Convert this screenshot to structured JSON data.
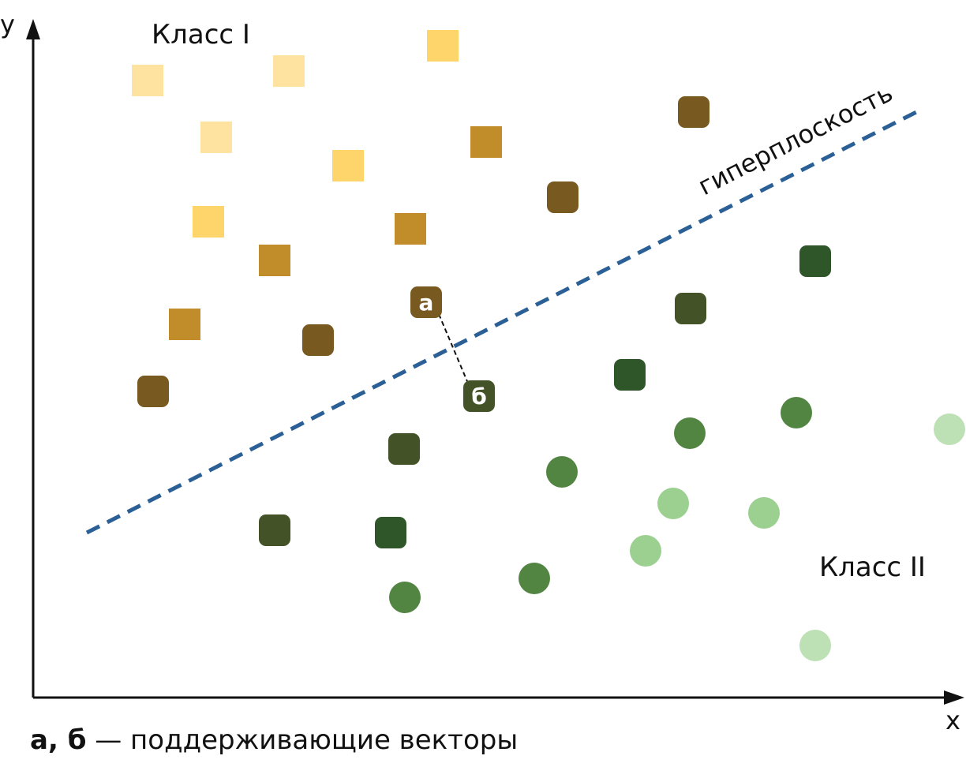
{
  "axes": {
    "y_label": "y",
    "x_label": "x"
  },
  "labels": {
    "class1": "Класс I",
    "class2": "Класс II",
    "hyperplane": "гиперплоскость",
    "support_a": "а",
    "support_b": "б"
  },
  "caption": {
    "bold": "а, б",
    "text": " — поддерживающие векторы"
  },
  "colors": {
    "axis": "#111111",
    "hyperplane": "#2b6096",
    "marker_text": "#ffffff"
  },
  "points": {
    "squares": [
      {
        "c": "#fde2a0"
      },
      {
        "c": "#fde2a0"
      },
      {
        "c": "#fdd56a"
      },
      {
        "c": "#fde2a0"
      },
      {
        "c": "#fdd56a"
      },
      {
        "c": "#fdd56a"
      },
      {
        "c": "#c08d2a"
      },
      {
        "c": "#c08d2a"
      },
      {
        "c": "#c08d2a"
      },
      {
        "c": "#c08d2a"
      }
    ],
    "rounded": [
      {
        "c": "#78591f"
      },
      {
        "c": "#78591f"
      },
      {
        "c": "#78591f"
      },
      {
        "c": "#78591f"
      },
      {
        "c": "#445327"
      },
      {
        "c": "#2e5629"
      },
      {
        "c": "#2e5629"
      },
      {
        "c": "#445327"
      },
      {
        "c": "#445327"
      },
      {
        "c": "#2e5629"
      }
    ],
    "circles": [
      {
        "c": "#528541"
      },
      {
        "c": "#528541"
      },
      {
        "c": "#528541"
      },
      {
        "c": "#528541"
      },
      {
        "c": "#528541"
      },
      {
        "c": "#9bd090"
      },
      {
        "c": "#9bd090"
      },
      {
        "c": "#9bd090"
      },
      {
        "c": "#bde0b4"
      },
      {
        "c": "#bde0b4"
      }
    ],
    "support_a_color": "#78591f",
    "support_b_color": "#445327"
  }
}
